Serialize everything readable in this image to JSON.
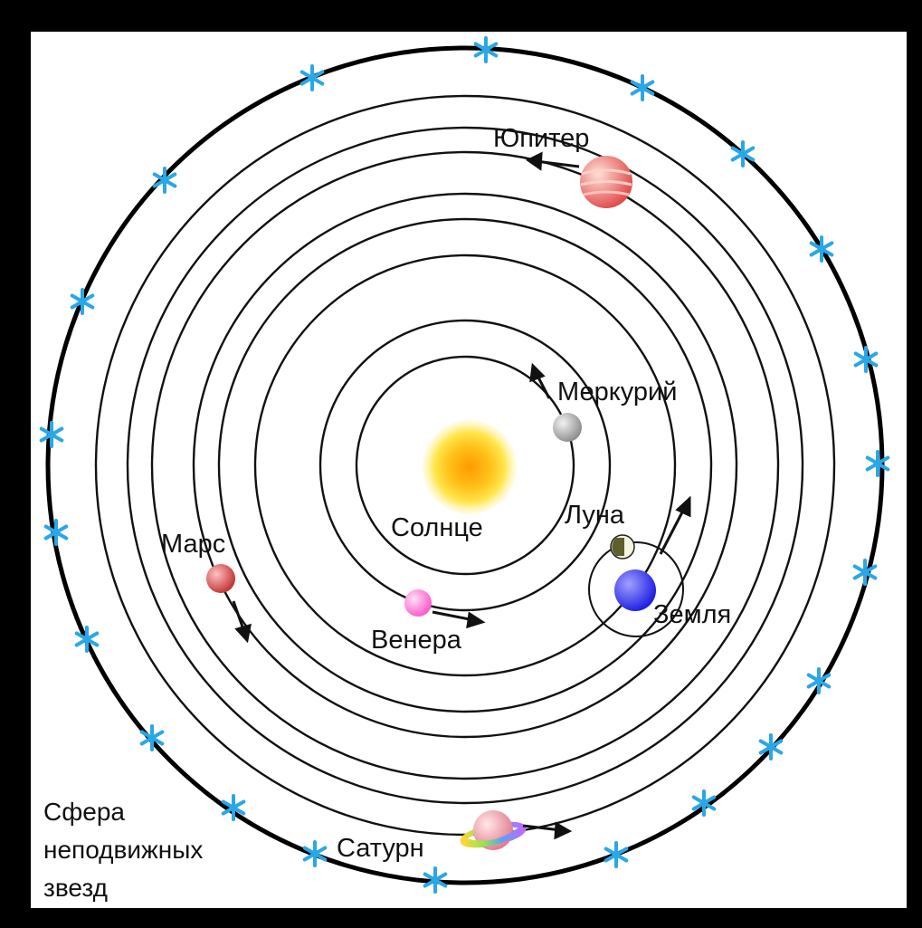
{
  "labels": {
    "sun": "Солнце",
    "mercury": "Меркурий",
    "venus": "Венера",
    "earth": "Земля",
    "moon": "Луна",
    "mars": "Марс",
    "jupiter": "Юпитер",
    "saturn": "Сатурн",
    "sphere": [
      "Сфера",
      "неподвижных",
      "звезд"
    ]
  },
  "colors": {
    "frame": "#000000",
    "background": "#ffffff",
    "orbit": "#111111",
    "sun": "#ffb300",
    "mercury": "#a9a9a9",
    "venus": "#ff88d8",
    "earth": "#3333ff",
    "moon": "#666633",
    "mars": "#d24a4a",
    "jupiter": "#f06060",
    "saturn": "#f4a0a0",
    "star": "#2aa7e6"
  },
  "icons": {
    "star": "star-icon"
  }
}
